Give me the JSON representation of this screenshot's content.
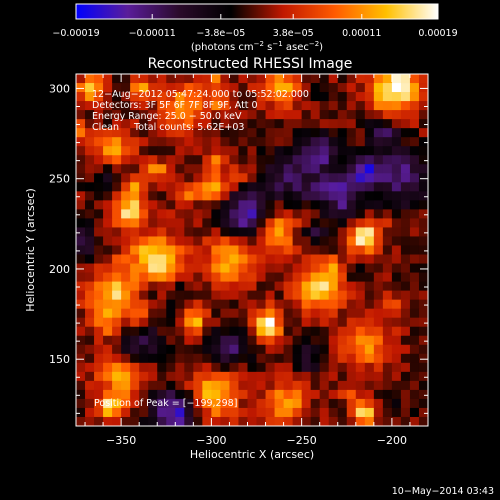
{
  "chart_data": {
    "type": "heatmap",
    "title": "Reconstructed RHESSI Image",
    "xlabel": "Heliocentric X (arcsec)",
    "ylabel": "Heliocentric Y (arcsec)",
    "xlim": [
      -375,
      -180
    ],
    "ylim": [
      113,
      308
    ],
    "x_ticks": [
      -350,
      -300,
      -250,
      -200
    ],
    "x_tick_labels": [
      "−350",
      "−300",
      "−250",
      "−200"
    ],
    "y_ticks": [
      150,
      200,
      250,
      300
    ],
    "y_tick_labels": [
      "150",
      "200",
      "250",
      "300"
    ],
    "colorbar": {
      "range": [
        -0.00019,
        0.00019
      ],
      "ticks": [
        -0.00019,
        -0.00011,
        -3.8e-05,
        3.8e-05,
        0.00011,
        0.00019
      ],
      "tick_labels": [
        "−0.00019",
        "−0.00011",
        "−3.8e−05",
        "3.8e−05",
        "0.00011",
        "0.00019"
      ],
      "unit_parts": [
        "(photons cm",
        "−2",
        " s",
        "−1",
        " asec",
        "−2",
        ")"
      ],
      "colors": [
        "#0000ff",
        "#5a1d9a",
        "#2a0a2a",
        "#000000",
        "#c01800",
        "#ff5a00",
        "#ffc000",
        "#ffffff"
      ]
    },
    "grid": false,
    "legend": "none",
    "notes": [
      "12−Aug−2012 05:47:24.000 to 05:52:02.000",
      "Detectors: 3F 5F 6F 7F 8F 9F, Att 0",
      "Energy Range: 25.0 − 50.0 keV",
      "Clean     Total counts: 5.62E+03"
    ],
    "peak_label": "Position of Peak = [−199,298]",
    "peak": [
      -199,
      298
    ],
    "grid_size": [
      39,
      39
    ],
    "seed": 20120812
  },
  "footer": {
    "timestamp": "10−May−2014 03:43"
  }
}
